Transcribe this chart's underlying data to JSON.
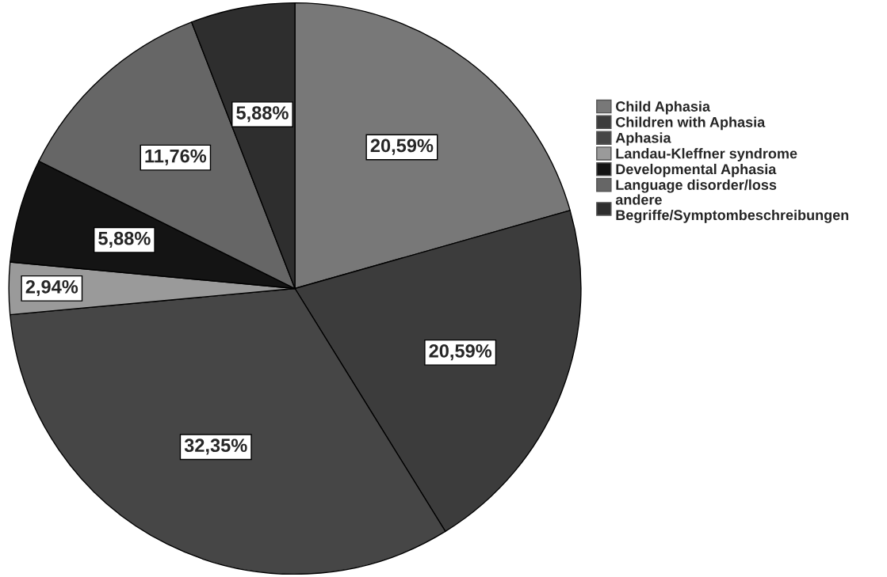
{
  "chart_data": {
    "type": "pie",
    "categories": [
      "Child Aphasia",
      "Children with Aphasia",
      "Aphasia",
      "Landau-Kleffner syndrome",
      "Developmental Aphasia",
      "Language disorder/loss",
      "andere\nBegriffe/Symptombeschreibungen"
    ],
    "values": [
      20.59,
      20.59,
      32.35,
      2.94,
      5.88,
      11.76,
      5.88
    ],
    "colors": [
      "#787878",
      "#3c3c3c",
      "#464646",
      "#9a9a9a",
      "#141414",
      "#666666",
      "#2e2e2e"
    ],
    "value_labels": [
      "20,59%",
      "20,59%",
      "32,35%",
      "2,94%",
      "5,88%",
      "11,76%",
      "5,88%"
    ],
    "legend": "right"
  }
}
